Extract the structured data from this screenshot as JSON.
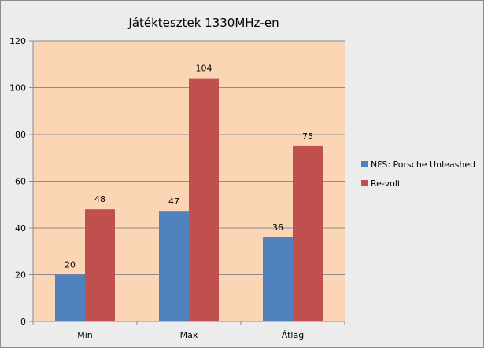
{
  "chart_data": {
    "type": "bar",
    "title": "Játéktesztek 1330MHz-en",
    "categories": [
      "Min",
      "Max",
      "Átlag"
    ],
    "series": [
      {
        "name": "NFS: Porsche Unleashed",
        "values": [
          20,
          47,
          36
        ],
        "color": "#4f81bd"
      },
      {
        "name": "Re-volt",
        "values": [
          48,
          104,
          75
        ],
        "color": "#c0504d"
      }
    ],
    "ylim": [
      0,
      120
    ],
    "yticks": [
      0,
      20,
      40,
      60,
      80,
      100,
      120
    ],
    "grid": true,
    "legend": "right",
    "plot_background": "#fcd5b5",
    "chart_background": "#ececec"
  }
}
